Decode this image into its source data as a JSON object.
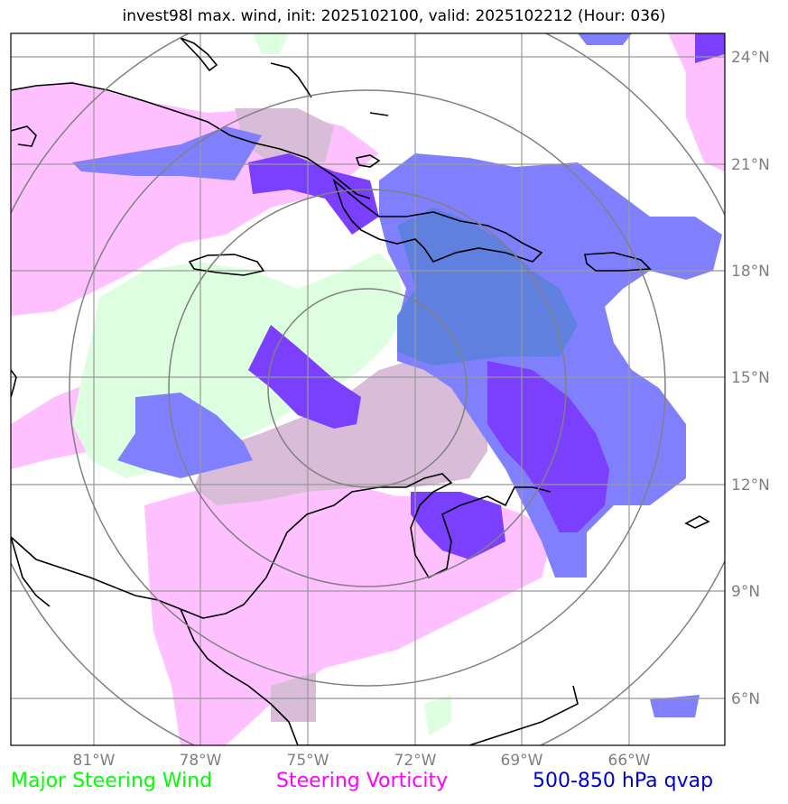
{
  "title": "invest98l max. wind, init: 2025102100, valid: 2025102212 (Hour: 036)",
  "map": {
    "lon_ticks": [
      "81°W",
      "78°W",
      "75°W",
      "72°W",
      "69°W",
      "66°W"
    ],
    "lat_ticks": [
      "24°N",
      "21°N",
      "18°N",
      "15°N",
      "12°N",
      "9°N",
      "6°N"
    ],
    "colors": {
      "steering_wind": "#ddffe0",
      "steering_vorticity": "#ffc0ff",
      "qvap": "#8080ff",
      "qvap_strong": "#7b3fff",
      "overlap": "#d8bcd8",
      "overlap_qvap": "#6080e0"
    }
  },
  "legend": {
    "wind": {
      "label": "Major Steering Wind",
      "color": "#00ff00"
    },
    "vorticity": {
      "label": "Steering Vorticity",
      "color": "#ff00ff"
    },
    "qvap": {
      "label": "500-850 hPa qvap",
      "color": "#0000cc"
    }
  }
}
